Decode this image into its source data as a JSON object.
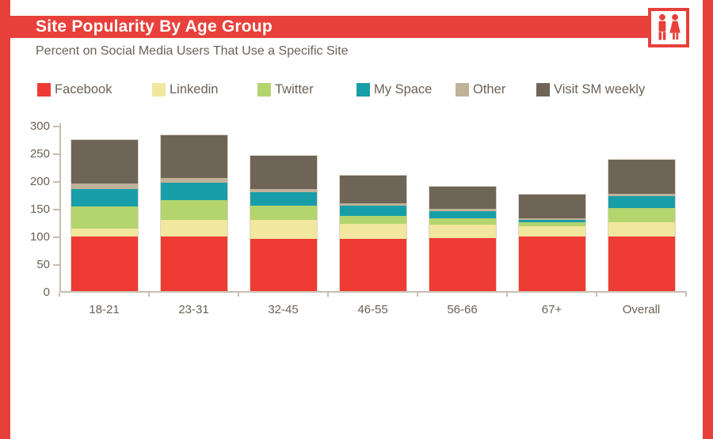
{
  "page": {
    "title": "Site Popularity By Age Group",
    "subtitle": "Percent on Social Media Users That Use a Specific Site"
  },
  "colors": {
    "accent_red": "#e8403a",
    "text_brown": "#6b6156",
    "axis_gray": "#c6bdb0",
    "facebook": "#ee3b33",
    "linkedin": "#f1e79f",
    "twitter": "#b4d46e",
    "myspace": "#189ea8",
    "other": "#c0b299",
    "visit_weekly": "#6f6557"
  },
  "icon": {
    "name": "man-woman-icon"
  },
  "chart_data": {
    "type": "bar",
    "stacked": true,
    "title": "Site Popularity By Age Group",
    "subtitle": "Percent on Social Media Users That Use a Specific Site",
    "xlabel": "",
    "ylabel": "",
    "ylim": [
      0,
      300
    ],
    "yticks": [
      0,
      50,
      100,
      150,
      200,
      250,
      300
    ],
    "grid": false,
    "legend_position": "top",
    "categories": [
      "18-21",
      "23-31",
      "32-45",
      "46-55",
      "56-66",
      "67+",
      "Overall"
    ],
    "series": [
      {
        "name": "Facebook",
        "color": "#ee3b33",
        "values": [
          99,
          98,
          95,
          95,
          96,
          99,
          98
        ]
      },
      {
        "name": "Linkedin",
        "color": "#f1e79f",
        "values": [
          14,
          31,
          33,
          26,
          24,
          18,
          26
        ]
      },
      {
        "name": "Twitter",
        "color": "#b4d46e",
        "values": [
          40,
          35,
          27,
          15,
          11,
          7,
          26
        ]
      },
      {
        "name": "My Space",
        "color": "#189ea8",
        "values": [
          32,
          32,
          24,
          19,
          13,
          5,
          21
        ]
      },
      {
        "name": "Other",
        "color": "#c0b299",
        "values": [
          9,
          8,
          6,
          4,
          4,
          3,
          5
        ]
      },
      {
        "name": "Visit SM weekly",
        "color": "#6f6557",
        "values": [
          79,
          78,
          60,
          50,
          40,
          42,
          61
        ]
      }
    ],
    "stack_totals": [
      273,
      282,
      245,
      209,
      188,
      174,
      237
    ]
  }
}
